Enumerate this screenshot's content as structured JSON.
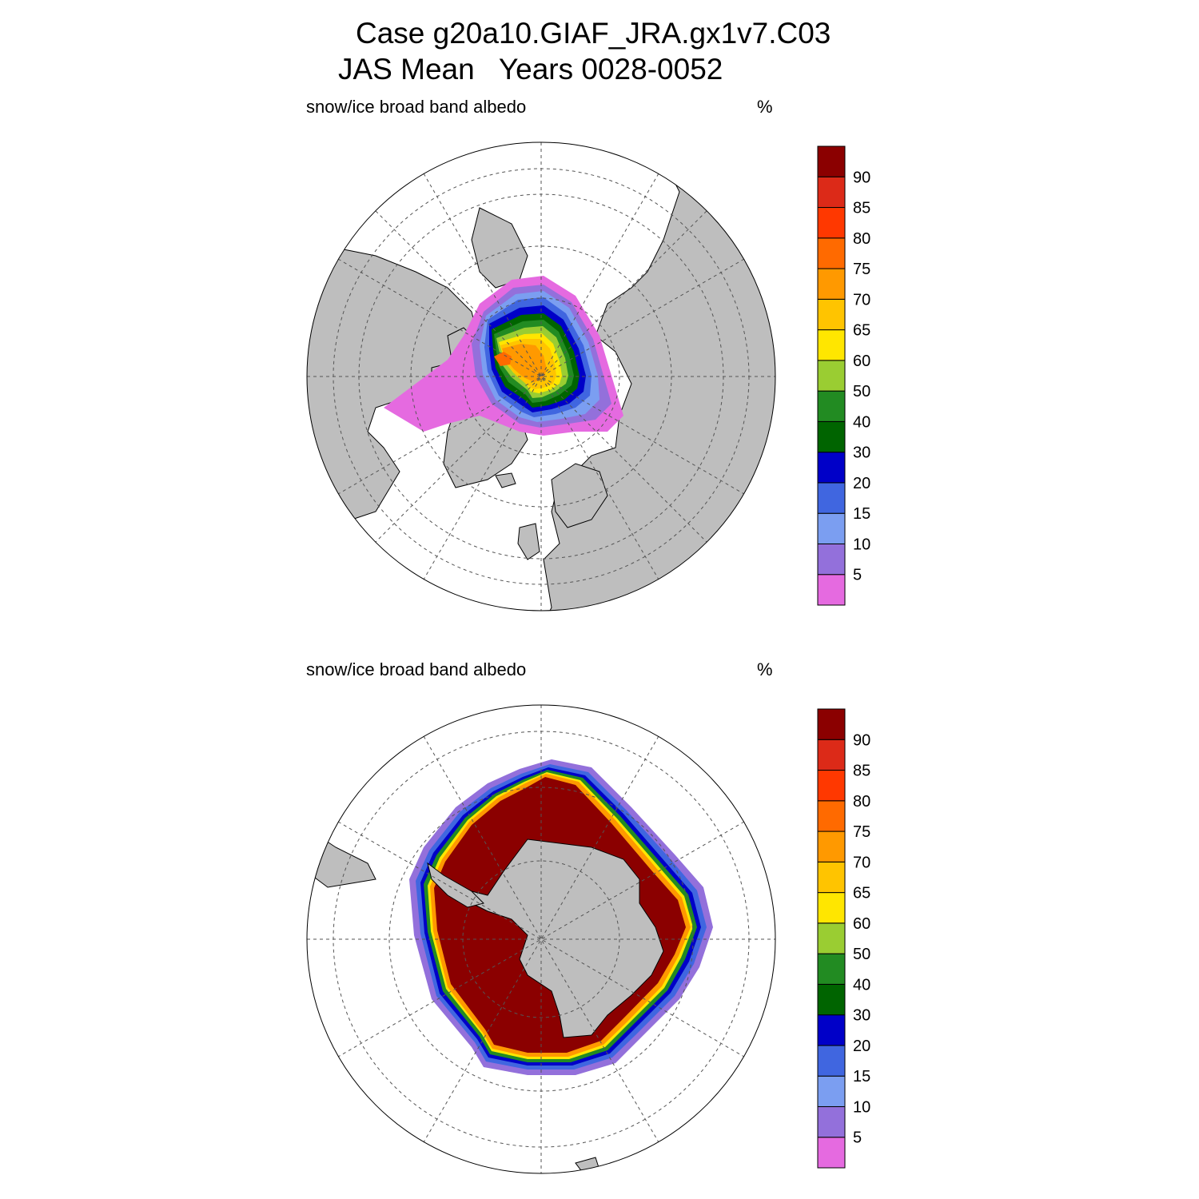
{
  "title": {
    "line1": "Case g20a10.GIAF_JRA.gx1v7.C03",
    "line2": "JAS Mean   Years 0028-0052"
  },
  "colors": {
    "land": "#bebebe",
    "ocean": "#ffffff",
    "graticule": "#555555",
    "outline": "#000000"
  },
  "panels": [
    {
      "id": "north",
      "hemisphere": "Northern Hemisphere",
      "variable_label": "snow/ice broad band albedo",
      "units_label": "%"
    },
    {
      "id": "south",
      "hemisphere": "Southern Hemisphere",
      "variable_label": "snow/ice broad band albedo",
      "units_label": "%"
    }
  ],
  "colorbar": {
    "levels": [
      "5",
      "10",
      "15",
      "20",
      "30",
      "40",
      "50",
      "60",
      "65",
      "70",
      "75",
      "80",
      "85",
      "90"
    ],
    "colors": [
      "#e56ae0",
      "#9370db",
      "#7b9ef1",
      "#4066e0",
      "#0000c8",
      "#006400",
      "#228b22",
      "#9acd32",
      "#ffe600",
      "#ffc400",
      "#ff9900",
      "#ff6a00",
      "#ff3800",
      "#dc2a18",
      "#8b0000"
    ]
  }
}
